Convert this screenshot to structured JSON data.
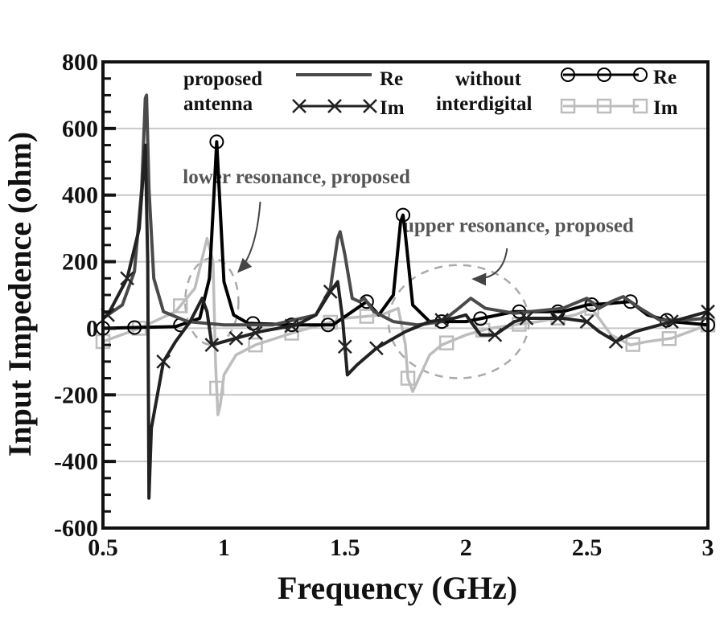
{
  "chart_data": {
    "type": "line",
    "title": "",
    "xlabel": "Frequency (GHz)",
    "ylabel": "Input Impedence (ohm)",
    "xlim": [
      0.5,
      3
    ],
    "ylim": [
      -600,
      800
    ],
    "xticks": [
      "0.5",
      "1",
      "1.5",
      "2",
      "2.5",
      "3"
    ],
    "xtick_values": [
      0.5,
      1,
      1.5,
      2,
      2.5,
      3
    ],
    "yticks": [
      "800",
      "600",
      "400",
      "200",
      "0",
      "-200",
      "-400",
      "-600"
    ],
    "ytick_values": [
      800,
      600,
      400,
      200,
      0,
      -200,
      -400,
      -600
    ],
    "grid": "horizontal",
    "legend": {
      "placement": "top",
      "group1_label_line1": "proposed",
      "group1_label_line2": "antenna",
      "group2_label_line1": "without",
      "group2_label_line2": "interdigital",
      "re_label": "Re",
      "im_label": "Im"
    },
    "series": [
      {
        "name": "proposed antenna Re",
        "color": "#4a4a4a",
        "marker": "none",
        "x": [
          0.5,
          0.58,
          0.63,
          0.66,
          0.675,
          0.68,
          0.69,
          0.71,
          0.75,
          0.85,
          1.0,
          1.2,
          1.38,
          1.44,
          1.47,
          1.48,
          1.5,
          1.53,
          1.56,
          1.58,
          1.62,
          1.7,
          1.8,
          1.9,
          1.97,
          2.02,
          2.08,
          2.2,
          2.4,
          2.5,
          2.55,
          2.6,
          2.65,
          2.72,
          2.8,
          2.9,
          3.0
        ],
        "y": [
          30,
          70,
          170,
          420,
          690,
          700,
          420,
          150,
          50,
          20,
          10,
          10,
          40,
          120,
          270,
          290,
          220,
          90,
          80,
          90,
          50,
          20,
          10,
          20,
          60,
          90,
          60,
          45,
          60,
          90,
          60,
          80,
          95,
          60,
          25,
          25,
          30
        ]
      },
      {
        "name": "proposed antenna Im",
        "color": "#222222",
        "marker": "x",
        "x": [
          0.5,
          0.52,
          0.6,
          0.65,
          0.675,
          0.685,
          0.69,
          0.7,
          0.75,
          0.8,
          0.86,
          0.91,
          0.93,
          0.95,
          1.05,
          1.15,
          1.3,
          1.38,
          1.44,
          1.47,
          1.49,
          1.51,
          1.55,
          1.63,
          1.75,
          1.85,
          1.95,
          2.0,
          2.06,
          2.12,
          2.2,
          2.25,
          2.4,
          2.5,
          2.55,
          2.62,
          2.7,
          2.8,
          2.9,
          3.0
        ],
        "y": [
          30,
          40,
          150,
          300,
          550,
          200,
          -510,
          -300,
          -100,
          -40,
          20,
          90,
          50,
          -50,
          -30,
          -10,
          10,
          40,
          110,
          140,
          30,
          -140,
          -110,
          -60,
          -10,
          20,
          30,
          40,
          -20,
          -20,
          20,
          30,
          30,
          20,
          -10,
          -40,
          -10,
          10,
          30,
          50
        ]
      },
      {
        "name": "without interdigital Re",
        "color": "#000000",
        "marker": "circle",
        "x": [
          0.5,
          0.8,
          0.9,
          0.94,
          0.96,
          0.97,
          0.98,
          1.0,
          1.04,
          1.1,
          1.3,
          1.45,
          1.55,
          1.59,
          1.64,
          1.7,
          1.73,
          1.74,
          1.75,
          1.78,
          1.85,
          2.0,
          2.2,
          2.4,
          2.5,
          2.6,
          2.68,
          2.75,
          2.85,
          3.0
        ],
        "y": [
          0,
          5,
          30,
          150,
          420,
          560,
          420,
          140,
          40,
          15,
          10,
          10,
          60,
          80,
          40,
          100,
          320,
          340,
          280,
          70,
          20,
          20,
          50,
          50,
          70,
          75,
          80,
          40,
          20,
          10
        ]
      },
      {
        "name": "without interdigital Im",
        "color": "#bdbdbd",
        "marker": "square",
        "x": [
          0.5,
          0.65,
          0.8,
          0.88,
          0.93,
          0.955,
          0.965,
          0.975,
          0.985,
          1.0,
          1.05,
          1.13,
          1.3,
          1.5,
          1.65,
          1.72,
          1.75,
          1.76,
          1.78,
          1.85,
          1.9,
          2.0,
          2.1,
          2.3,
          2.45,
          2.52,
          2.6,
          2.68,
          2.75,
          2.85,
          3.0
        ],
        "y": [
          -40,
          0,
          50,
          120,
          270,
          200,
          -100,
          -260,
          -230,
          -140,
          -80,
          -50,
          -10,
          30,
          40,
          60,
          -50,
          -150,
          -190,
          -80,
          -50,
          -20,
          0,
          20,
          40,
          60,
          -20,
          -50,
          -40,
          -30,
          10
        ]
      }
    ],
    "marker_positions": {
      "proposed antenna Im": [
        0.52,
        0.6,
        0.75,
        0.95,
        1.05,
        1.13,
        1.28,
        1.44,
        1.5,
        1.63,
        1.9,
        2.12,
        2.25,
        2.38,
        2.5,
        2.62,
        2.85,
        3.0
      ],
      "without interdigital Re": [
        0.5,
        0.63,
        0.82,
        0.97,
        1.12,
        1.28,
        1.43,
        1.59,
        1.74,
        1.9,
        2.06,
        2.22,
        2.38,
        2.52,
        2.68,
        2.83,
        3.0
      ],
      "without interdigital Im": [
        0.5,
        0.65,
        0.82,
        0.97,
        1.13,
        1.28,
        1.44,
        1.59,
        1.76,
        1.92,
        2.07,
        2.22,
        2.38,
        2.52,
        2.69,
        2.84,
        3.0
      ]
    },
    "annotations": [
      {
        "text": "lower resonance, proposed",
        "ellipse_center": [
          0.95,
          80
        ],
        "ellipse_radius": [
          0.11,
          130
        ],
        "arrow_from": [
          1.15,
          380
        ],
        "arrow_to": [
          1.06,
          170
        ],
        "text_anchor_data": [
          0.83,
          435
        ]
      },
      {
        "text": "upper resonance, proposed",
        "ellipse_center": [
          1.97,
          20
        ],
        "ellipse_radius": [
          0.29,
          170
        ],
        "arrow_from": [
          2.17,
          240
        ],
        "arrow_to": [
          2.03,
          148
        ],
        "text_anchor_data": [
          1.74,
          290
        ]
      }
    ]
  }
}
